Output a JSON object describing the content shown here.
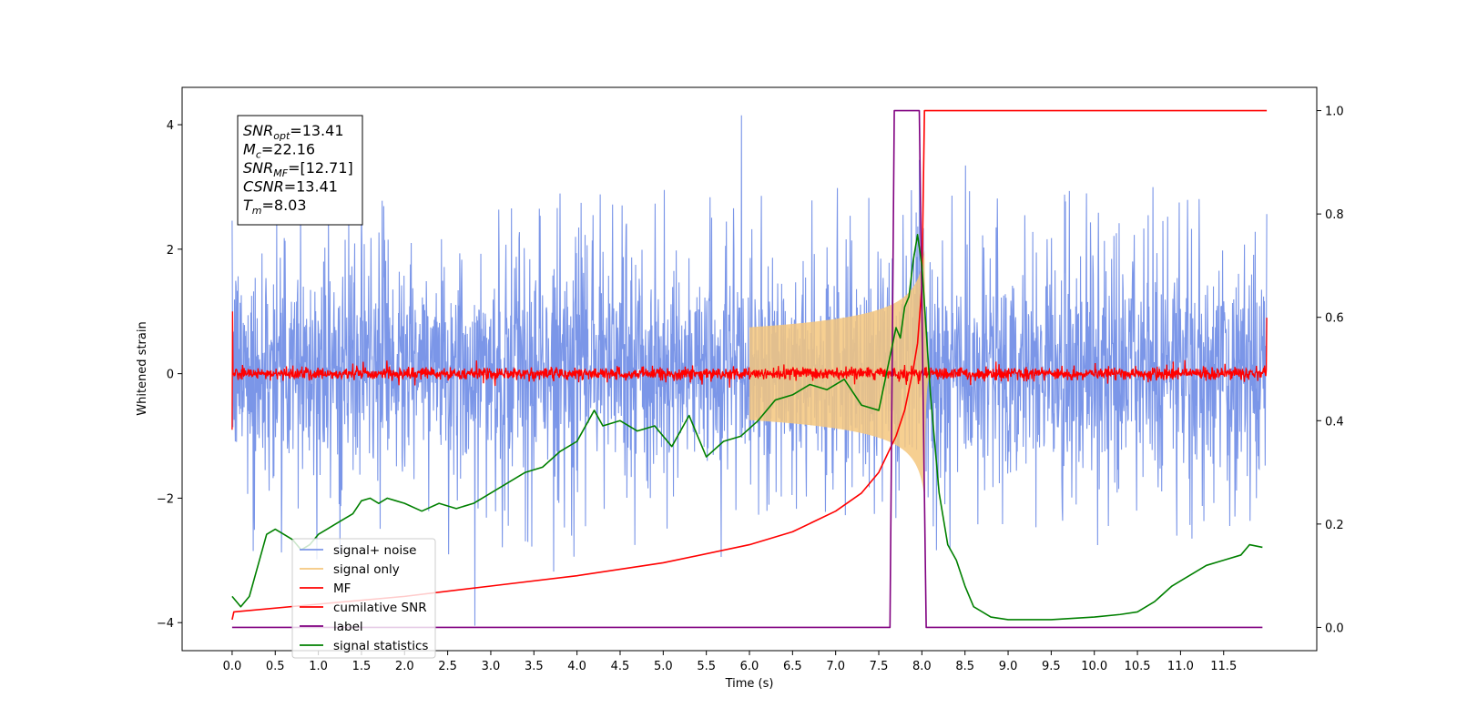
{
  "chart_data": {
    "type": "line",
    "title": "",
    "xlabel": "Time (s)",
    "ylabel": "Whitened strain",
    "y2label": "",
    "xlim": [
      -0.58,
      12.58
    ],
    "ylim": [
      -4.45,
      4.6
    ],
    "y2lim": [
      -0.045,
      1.045
    ],
    "xticks": [
      "0.0",
      "0.5",
      "1.0",
      "1.5",
      "2.0",
      "2.5",
      "3.0",
      "3.5",
      "4.0",
      "4.5",
      "5.0",
      "5.5",
      "6.0",
      "6.5",
      "7.0",
      "7.5",
      "8.0",
      "8.5",
      "9.0",
      "9.5",
      "10.0",
      "10.5",
      "11.0",
      "11.5"
    ],
    "yticks": [
      "−4",
      "−2",
      "0",
      "2",
      "4"
    ],
    "y2ticks": [
      "0.0",
      "0.2",
      "0.4",
      "0.6",
      "0.8",
      "1.0"
    ],
    "grid": false,
    "legend_position": "lower-left",
    "annotation": {
      "lines": [
        {
          "sym": "SNR",
          "sub": "opt",
          "rest": "=13.41"
        },
        {
          "sym": "M",
          "sub": "c",
          "rest": "=22.16"
        },
        {
          "sym": "SNR",
          "sub": "MF",
          "rest": "=[12.71]"
        },
        {
          "sym": "CSNR",
          "sub": "",
          "rest": "=13.41"
        },
        {
          "sym": "T",
          "sub": "m",
          "rest": "=8.03"
        }
      ]
    },
    "series": [
      {
        "name": "signal+ noise",
        "color": "#7b96e8",
        "axis": "left",
        "kind": "noise",
        "x_range": [
          0,
          12
        ],
        "band": [
          -2.1,
          2.3
        ],
        "peaks": [
          4.15,
          -4.05
        ]
      },
      {
        "name": "signal only",
        "color": "#f5c77e",
        "axis": "left",
        "kind": "chirp",
        "t_merge": 8.03,
        "peak_amplitude": 2.0
      },
      {
        "name": "MF",
        "color": "#ff0000",
        "axis": "left",
        "kind": "noise",
        "x_range": [
          0,
          12
        ],
        "band": [
          -0.12,
          0.12
        ],
        "peaks": [
          1.0,
          -0.9
        ]
      },
      {
        "name": "cumilative SNR",
        "color": "#ff0000",
        "axis": "right",
        "x": [
          0,
          0.02,
          1,
          2,
          3,
          4,
          5,
          6,
          6.5,
          7,
          7.3,
          7.5,
          7.7,
          7.8,
          7.9,
          7.95,
          8.0,
          8.03,
          12
        ],
        "y": [
          0.015,
          0.03,
          0.045,
          0.06,
          0.08,
          0.1,
          0.125,
          0.16,
          0.185,
          0.225,
          0.26,
          0.3,
          0.37,
          0.42,
          0.5,
          0.55,
          0.66,
          1.0,
          1.0
        ]
      },
      {
        "name": "label",
        "color": "#800080",
        "axis": "right",
        "x": [
          0,
          7.63,
          7.68,
          7.97,
          8.05,
          11.95
        ],
        "y": [
          0,
          0,
          1,
          1,
          0,
          0
        ]
      },
      {
        "name": "signal statistics",
        "color": "#008000",
        "axis": "right",
        "x": [
          0,
          0.1,
          0.2,
          0.3,
          0.4,
          0.5,
          0.6,
          0.7,
          0.8,
          0.9,
          1.0,
          1.1,
          1.2,
          1.3,
          1.4,
          1.5,
          1.6,
          1.7,
          1.8,
          1.9,
          2.0,
          2.2,
          2.4,
          2.6,
          2.8,
          3.0,
          3.2,
          3.4,
          3.6,
          3.8,
          4.0,
          4.2,
          4.3,
          4.5,
          4.7,
          4.9,
          5.1,
          5.3,
          5.5,
          5.7,
          5.9,
          6.1,
          6.3,
          6.5,
          6.7,
          6.9,
          7.1,
          7.3,
          7.5,
          7.6,
          7.7,
          7.75,
          7.8,
          7.85,
          7.9,
          7.95,
          8.0,
          8.1,
          8.2,
          8.3,
          8.4,
          8.5,
          8.6,
          8.8,
          9.0,
          9.5,
          10.0,
          10.3,
          10.5,
          10.7,
          10.9,
          11.1,
          11.3,
          11.5,
          11.7,
          11.8,
          11.95
        ],
        "y": [
          0.06,
          0.04,
          0.06,
          0.12,
          0.18,
          0.19,
          0.18,
          0.17,
          0.15,
          0.16,
          0.18,
          0.19,
          0.2,
          0.21,
          0.22,
          0.245,
          0.25,
          0.24,
          0.25,
          0.245,
          0.24,
          0.225,
          0.24,
          0.23,
          0.24,
          0.26,
          0.28,
          0.3,
          0.31,
          0.34,
          0.36,
          0.42,
          0.39,
          0.4,
          0.38,
          0.39,
          0.35,
          0.41,
          0.33,
          0.36,
          0.37,
          0.4,
          0.44,
          0.45,
          0.47,
          0.46,
          0.48,
          0.43,
          0.42,
          0.5,
          0.58,
          0.56,
          0.62,
          0.64,
          0.71,
          0.76,
          0.7,
          0.45,
          0.26,
          0.16,
          0.13,
          0.08,
          0.04,
          0.02,
          0.015,
          0.015,
          0.02,
          0.025,
          0.03,
          0.05,
          0.08,
          0.1,
          0.12,
          0.13,
          0.14,
          0.16,
          0.155
        ]
      }
    ]
  }
}
